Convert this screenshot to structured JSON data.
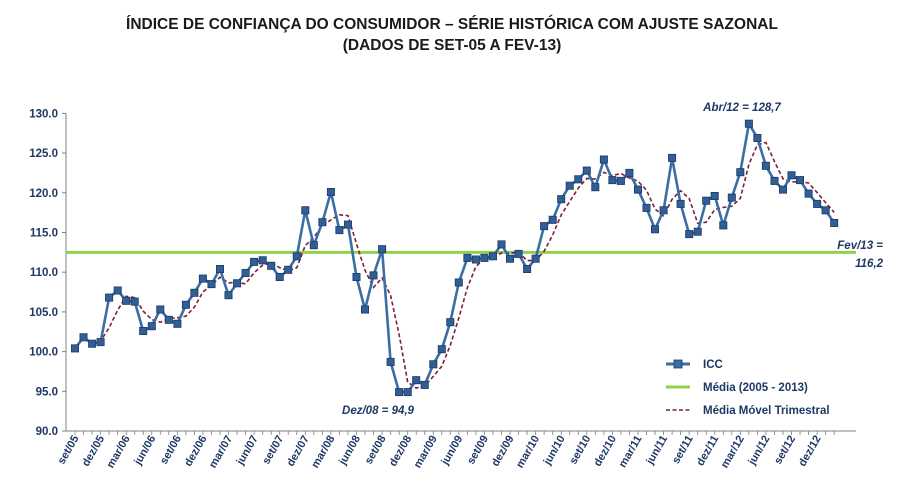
{
  "chart_data": {
    "type": "line",
    "title": "ÍNDICE DE CONFIANÇA DO CONSUMIDOR – SÉRIE HISTÓRICA COM AJUSTE SAZONAL",
    "subtitle": "(DADOS DE SET-05 A FEV-13)",
    "ylim": [
      90,
      130
    ],
    "yticks": [
      "90.0",
      "95.0",
      "100.0",
      "105.0",
      "110.0",
      "115.0",
      "120.0",
      "125.0",
      "130.0"
    ],
    "x_tick_labels": [
      "set/05",
      "dez/05",
      "mar/06",
      "jun/06",
      "set/06",
      "dez/06",
      "mar/07",
      "jun/07",
      "set/07",
      "dez/07",
      "mar/08",
      "jun/08",
      "set/08",
      "dez/08",
      "mar/09",
      "jun/09",
      "set/09",
      "dez/09",
      "mar/10",
      "jun/10",
      "set/10",
      "dez/10",
      "mar/11",
      "jun/11",
      "set/11",
      "dez/11",
      "mar/12",
      "jun/12",
      "set/12",
      "dez/12"
    ],
    "grid": false,
    "legend_position": "bottom-right",
    "series": [
      {
        "name": "ICC",
        "color": "#3a6ea5",
        "marker": "square",
        "values": [
          100.4,
          101.8,
          101.0,
          101.2,
          106.8,
          107.7,
          106.4,
          106.3,
          102.6,
          103.2,
          105.3,
          104.0,
          103.5,
          105.9,
          107.4,
          109.2,
          108.5,
          110.4,
          107.1,
          108.6,
          109.9,
          111.3,
          111.5,
          110.8,
          109.4,
          110.3,
          112.0,
          117.8,
          113.4,
          116.3,
          120.1,
          115.3,
          116.0,
          109.4,
          105.3,
          109.6,
          112.9,
          98.7,
          94.9,
          94.9,
          96.4,
          95.8,
          98.4,
          100.3,
          103.7,
          108.7,
          111.8,
          111.6,
          111.8,
          112.0,
          113.5,
          111.7,
          112.3,
          110.4,
          111.7,
          115.8,
          116.6,
          119.2,
          120.9,
          121.7,
          122.8,
          120.7,
          124.2,
          121.6,
          121.5,
          122.5,
          120.4,
          118.1,
          115.4,
          117.8,
          124.4,
          118.6,
          114.8,
          115.1,
          119.0,
          119.6,
          115.9,
          119.4,
          122.6,
          128.7,
          126.9,
          123.4,
          121.5,
          120.4,
          122.2,
          121.6,
          119.9,
          118.6,
          117.8,
          116.2
        ]
      },
      {
        "name": "Média (2005 - 2013)",
        "color": "#92d050",
        "value": 112.5
      },
      {
        "name": "Média Móvel Trimestral",
        "color": "#7b1f3f",
        "style": "dashed"
      }
    ],
    "annotations": [
      {
        "text": "Abr/12 = 128,7"
      },
      {
        "text": "Dez/08 = 94,9"
      },
      {
        "text": "Fev/13 =",
        "text2": "116,2"
      }
    ]
  }
}
